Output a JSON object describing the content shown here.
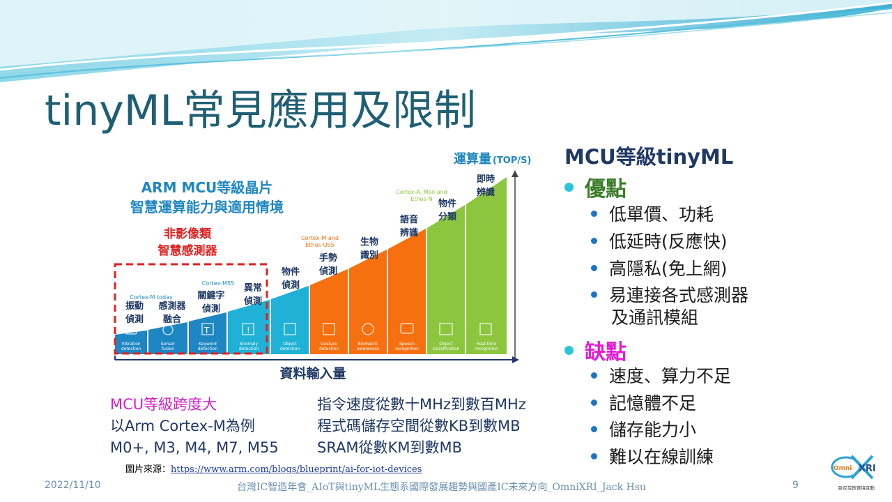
{
  "slide": {
    "title": "tinyML常見應用及限制",
    "date": "2022/11/10",
    "footer": "台灣IC智造年會_AIoT與tinyML生態系國際發展趨勢與國產IC未來方向_OmniXRI_Jack Hsu",
    "page_number": "9"
  },
  "figure": {
    "heading1": "ARM MCU等級晶片",
    "heading2": "智慧運算能力與適用情境",
    "non_image1": "非影像類",
    "non_image2": "智慧感測器",
    "y_axis_label": "運算量",
    "y_axis_unit": "(TOP/S)",
    "x_axis_label": "資料輸入量",
    "apps": [
      {
        "zh1": "振動",
        "zh2": "偵測",
        "en1": "Vibration",
        "en2": "detection"
      },
      {
        "zh1": "感測器",
        "zh2": "融合",
        "en1": "Sensor",
        "en2": "fusion"
      },
      {
        "zh1": "關鍵字",
        "zh2": "偵測",
        "en1": "Keyword",
        "en2": "detection"
      },
      {
        "zh1": "異常",
        "zh2": "偵測",
        "en1": "Anomaly",
        "en2": "detection"
      },
      {
        "zh1": "物件",
        "zh2": "偵測",
        "en1": "Object",
        "en2": "detection"
      },
      {
        "zh1": "手勢",
        "zh2": "偵測",
        "en1": "Gesture",
        "en2": "detection"
      },
      {
        "zh1": "生物",
        "zh2": "識別",
        "en1": "Biometric",
        "en2": "awareness"
      },
      {
        "zh1": "語音",
        "zh2": "辨識",
        "en1": "Speech",
        "en2": "recognition"
      },
      {
        "zh1": "物件",
        "zh2": "分類",
        "en1": "Object",
        "en2": "classification"
      },
      {
        "zh1": "即時",
        "zh2": "辨識",
        "en1": "Real-time",
        "en2": "recognition"
      }
    ],
    "cores": {
      "m_today": "Cortex-M today",
      "m55": "Cortex-M55",
      "ethos_1": "Cortex-M and",
      "ethos_2": "Ethos-U55",
      "mali_1": "Cortex-A, Mali and",
      "mali_2": "Ethos-N"
    },
    "colors": {
      "blue": "#1e86c3",
      "cyan": "#20b1d6",
      "orange": "#f7700f",
      "green": "#8cc63f",
      "red_dash": "#e02020"
    }
  },
  "notes": {
    "left": {
      "line1": "MCU等級跨度大",
      "line2": "以Arm Cortex-M為例",
      "line3": "M0+, M3, M4, M7, M55"
    },
    "right": {
      "line1": "指令速度從數十MHz到數百MHz",
      "line2": "程式碼儲存空間從數KB到數MB",
      "line3": "SRAM從數KM到數MB"
    }
  },
  "credit": {
    "label": "圖片來源：",
    "url": "https://www.arm.com/blogs/blueprint/ai-for-iot-devices"
  },
  "right_panel": {
    "heading": "MCU等級tinyML",
    "pros_title": "優點",
    "pros": [
      "低單價、功耗",
      "低延時(反應快)",
      "高隱私(免上網)",
      "易連接各式感測器",
      "及通訊模組"
    ],
    "cons_title": "缺點",
    "cons": [
      "速度、算力不足",
      "記憶體不足",
      "儲存能力小",
      "難以在線訓練"
    ]
  },
  "logo": {
    "text1": "Omni",
    "text2": "XRI",
    "tagline": "歐尼克斯實境互動"
  }
}
